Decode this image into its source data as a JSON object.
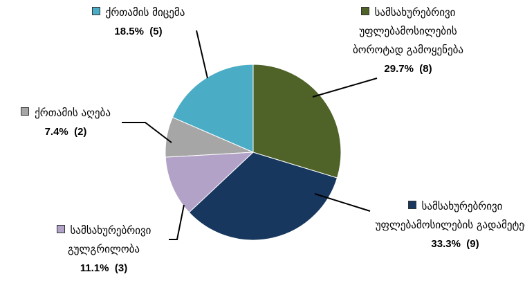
{
  "chart_data": {
    "type": "pie",
    "categories": [
      "სამსახურებრივი უფლებამოსილების ბოროტად გამოყენება",
      "სამსახურებრივი უფლებამოსილების გადამეტება",
      "სამსახურებრივი გულგრილობა",
      "ქრთამის აღება",
      "ქრთამის მიცემა"
    ],
    "values": [
      29.7,
      33.3,
      11.1,
      7.4,
      18.5
    ],
    "value_labels": [
      "29.7%  (8)",
      "33.3%  (9)",
      "11.1%  (3)",
      "7.4%  (2)",
      "18.5%  (5)"
    ],
    "colors": [
      "#4f6228",
      "#17375e",
      "#b3a2c7",
      "#a6a6a6",
      "#4bacc6"
    ]
  }
}
